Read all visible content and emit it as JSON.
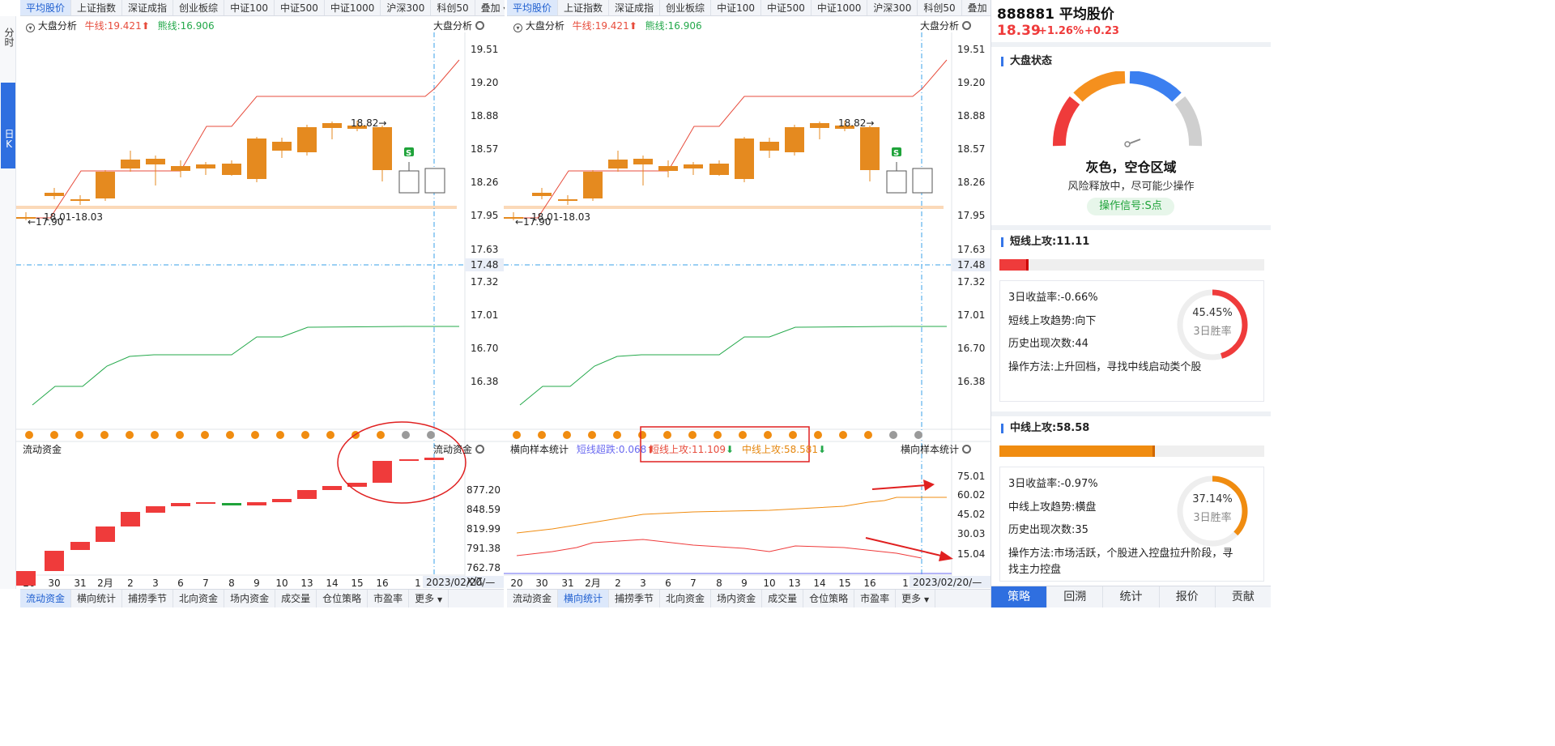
{
  "top_tabs": {
    "items": [
      "平均股价",
      "上证指数",
      "深证成指",
      "创业板综",
      "中证100",
      "中证500",
      "中证1000",
      "沪深300",
      "科创50",
      "叠加"
    ]
  },
  "left_strip": {
    "fen_shi": "分时",
    "ri_k": "日K"
  },
  "left_panel": {
    "main": {
      "title": "大盘分析",
      "niu_label": "牛线:19.421",
      "xiong_label": "熊线:16.906",
      "right_title": "大盘分析"
    },
    "y_ticks": [
      "19.51",
      "19.20",
      "18.88",
      "18.57",
      "18.26",
      "17.95",
      "17.63",
      "17.48",
      "17.32",
      "17.01",
      "16.70",
      "16.38"
    ],
    "annot_high": "18.82→",
    "annot_range": "18.01-18.03",
    "annot_low": "←17.90",
    "s_badge": "S",
    "sub": {
      "title": "流动资金",
      "right_title": "流动资金",
      "y_ticks": [
        "877.20",
        "848.59",
        "819.99",
        "791.38",
        "762.78"
      ],
      "unit": "X亿"
    },
    "x_labels": [
      "20",
      "30",
      "31",
      "2月",
      "2",
      "3",
      "6",
      "7",
      "8",
      "9",
      "10",
      "13",
      "14",
      "15",
      "16",
      "1"
    ],
    "date_box": "2023/02/20/—"
  },
  "right_panel": {
    "main": {
      "title": "大盘分析",
      "niu_label": "牛线:19.421",
      "xiong_label": "熊线:16.906",
      "right_title": "大盘分析"
    },
    "y_ticks": [
      "19.51",
      "19.20",
      "18.88",
      "18.57",
      "18.26",
      "17.95",
      "17.63",
      "17.48",
      "17.32",
      "17.01",
      "16.70",
      "16.38"
    ],
    "annot_high": "18.82→",
    "annot_range": "18.01-18.03",
    "annot_low": "←17.90",
    "s_badge": "S",
    "sub": {
      "title": "横向样本统计",
      "duanxian_chaodie": "短线超跌:0.068",
      "duanxian_shanggong": "短线上攻:11.109",
      "zhongxian_shanggong": "中线上攻:58.581",
      "right_title": "横向样本统计",
      "y_ticks": [
        "75.01",
        "60.02",
        "45.02",
        "30.03",
        "15.04"
      ]
    },
    "x_labels": [
      "20",
      "30",
      "31",
      "2月",
      "2",
      "3",
      "6",
      "7",
      "8",
      "9",
      "10",
      "13",
      "14",
      "15",
      "16",
      "1"
    ],
    "date_box": "2023/02/20/—"
  },
  "bottom_tabs": {
    "items": [
      "流动资金",
      "横向统计",
      "捕捞季节",
      "北向资金",
      "场内资金",
      "成交量",
      "仓位策略",
      "市盈率",
      "更多"
    ]
  },
  "stock": {
    "code_name": "888881 平均股价",
    "price": "18.39",
    "change_pct": "+1.26%",
    "change_amt": "+0.23"
  },
  "dapan": {
    "title": "大盘状态",
    "status": "灰色，空仓区域",
    "desc": "风险释放中，尽可能少操作",
    "signal": "操作信号:S点"
  },
  "duanxian": {
    "title": "短线上攻:11.11",
    "bar_fraction": 0.11,
    "rate_label": "3日收益率:",
    "rate": "-0.66%",
    "trend_label": "短线上攻趋势:",
    "trend": "向下",
    "count_label": "历史出现次数:",
    "count": "44",
    "method_label": "操作方法:",
    "method": "上升回档，寻找中线启动类个股",
    "win": "45.45%",
    "win_fraction": 0.4545,
    "win_label": "3日胜率"
  },
  "zhongxian": {
    "title": "中线上攻:58.58",
    "bar_fraction": 0.5858,
    "rate_label": "3日收益率:",
    "rate": "-0.97%",
    "trend_label": "中线上攻趋势:",
    "trend": "横盘",
    "count_label": "历史出现次数:",
    "count": "35",
    "method_label": "操作方法:",
    "method_l1": "市场活跃，个股进入控盘拉升阶段，寻",
    "method_l2": "找主力控盘",
    "win": "37.14%",
    "win_fraction": 0.3714,
    "win_label": "3日胜率"
  },
  "footer_tabs": [
    "策略",
    "回溯",
    "统计",
    "报价",
    "贡献"
  ],
  "colors": {
    "up": "#ef3b3b",
    "down": "#1fa33a",
    "candle": "#e58a1f",
    "niu": "#e74c3c",
    "xiong": "#23a84a",
    "accent": "#2f6fe0",
    "dot": "#f08c10",
    "dot_grey": "#9a9a9a",
    "zhong": "#f08c10",
    "duan": "#ef3b3b"
  }
}
